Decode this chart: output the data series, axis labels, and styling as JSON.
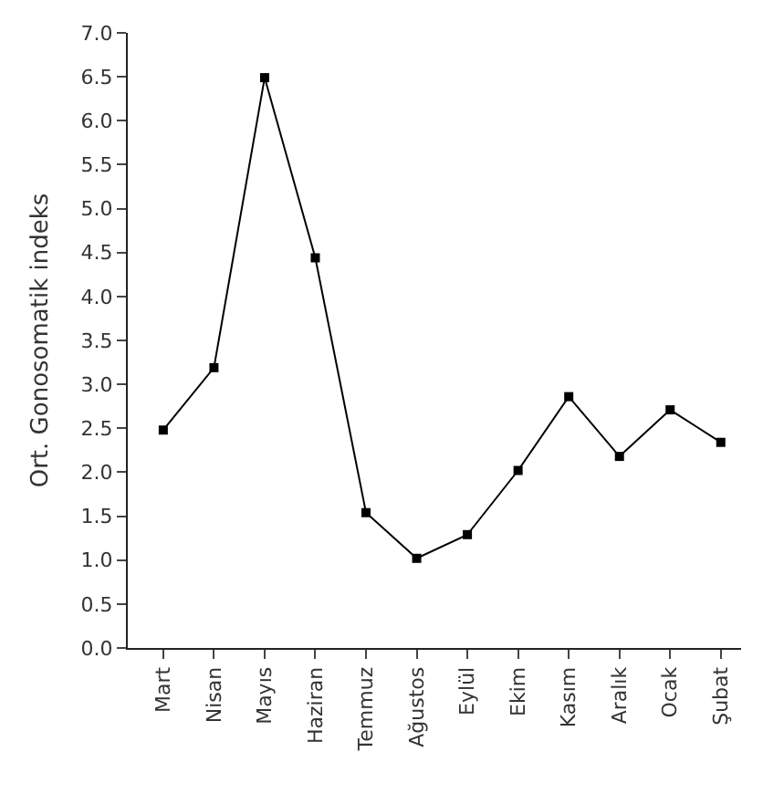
{
  "chart_data": {
    "type": "line",
    "ylabel": "Ort. Gonosomatik indeks",
    "categories": [
      "Mart",
      "Nisan",
      "Mayıs",
      "Haziran",
      "Temmuz",
      "Ağustos",
      "Eylül",
      "Ekim",
      "Kasım",
      "Aralık",
      "Ocak",
      "Şubat"
    ],
    "series": [
      {
        "color": "#000000",
        "values": [
          2.48,
          3.19,
          6.49,
          4.44,
          1.54,
          1.02,
          1.29,
          2.02,
          2.86,
          2.18,
          2.71,
          2.34
        ]
      }
    ],
    "ylim": [
      0,
      7
    ],
    "yticks": [
      {
        "value": 0,
        "label": "0.0"
      },
      {
        "value": 0.5,
        "label": "0.5"
      },
      {
        "value": 1,
        "label": "1.0"
      },
      {
        "value": 1.5,
        "label": "1.5"
      },
      {
        "value": 2,
        "label": "2.0"
      },
      {
        "value": 2.5,
        "label": "2.5"
      },
      {
        "value": 3,
        "label": "3.0"
      },
      {
        "value": 3.5,
        "label": "3.5"
      },
      {
        "value": 4,
        "label": "4.0"
      },
      {
        "value": 4.5,
        "label": "4.5"
      },
      {
        "value": 5,
        "label": "5.0"
      },
      {
        "value": 5.5,
        "label": "5.5"
      },
      {
        "value": 6,
        "label": "6.0"
      },
      {
        "value": 6.5,
        "label": "6.5"
      },
      {
        "value": 7,
        "label": "7.0"
      }
    ],
    "marker": "square",
    "line_style": "solid",
    "legend": false
  }
}
